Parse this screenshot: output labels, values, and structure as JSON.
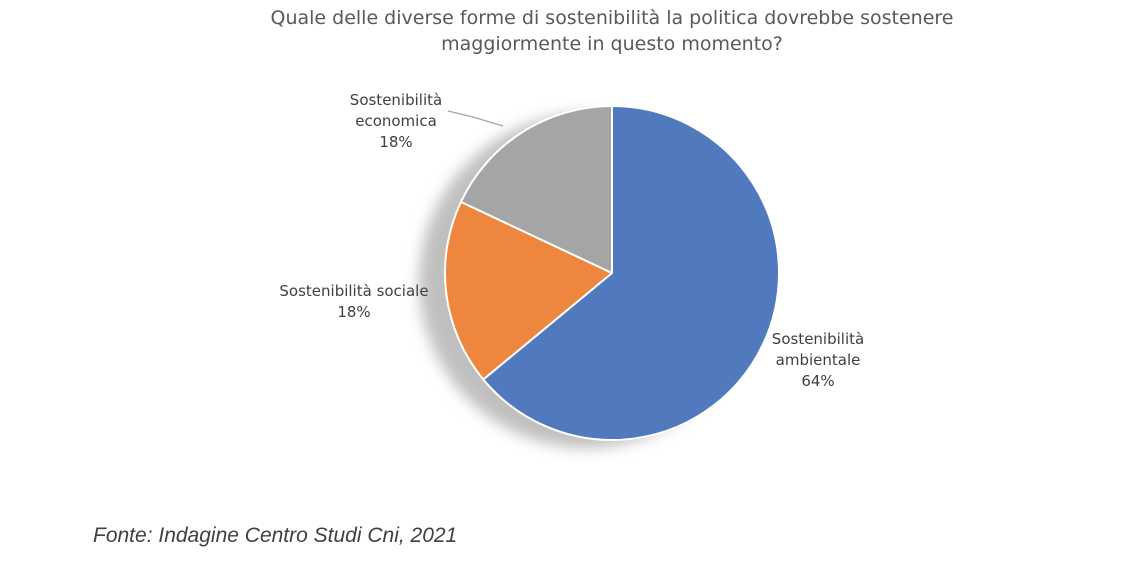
{
  "chart_data": {
    "type": "pie",
    "title_lines": [
      "Quale delle diverse forme di sostenibilità la politica dovrebbe sostenere",
      "maggiormente in questo momento?"
    ],
    "slices": [
      {
        "label_lines": [
          "Sostenibilità",
          "ambientale"
        ],
        "value": 64,
        "value_label": "64%",
        "color": "#5079BE"
      },
      {
        "label_lines": [
          "Sostenibilità sociale"
        ],
        "value": 18,
        "value_label": "18%",
        "color": "#EE873D"
      },
      {
        "label_lines": [
          "Sostenibilità",
          "economica"
        ],
        "value": 18,
        "value_label": "18%",
        "color": "#A5A5A5"
      }
    ],
    "start_angle_deg": 0,
    "direction": "clockwise",
    "legend": "none",
    "shadow": true
  },
  "source_note": "Fonte: Indagine Centro Studi Cni, 2021"
}
